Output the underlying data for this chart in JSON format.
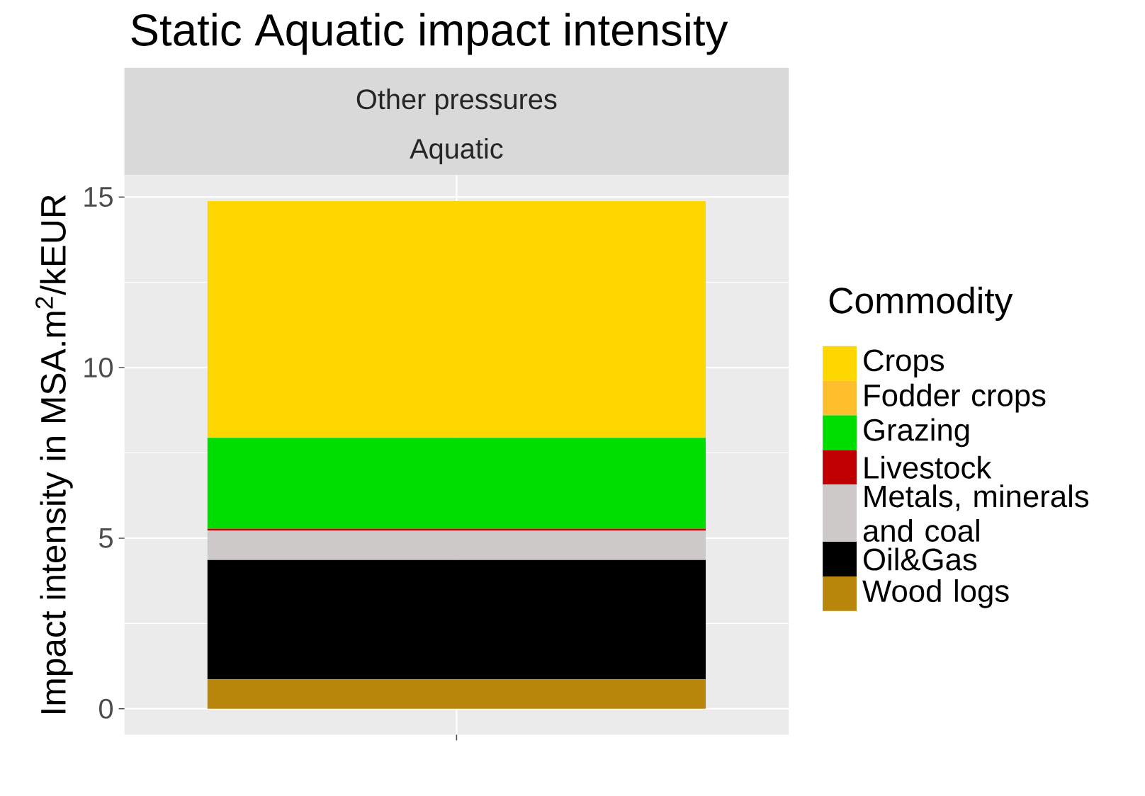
{
  "chart_data": {
    "type": "bar",
    "title": "Static Aquatic impact intensity",
    "ylabel": "Impact intensity in MSA.m$^{2}$/kEUR",
    "legend_title": "Commodity",
    "annotations": [
      "Other pressures",
      "Aquatic"
    ],
    "categories": [
      null
    ],
    "stacked": true,
    "grid": true,
    "legend": "right",
    "ylim": [
      -0.76,
      15.64
    ],
    "yticks": [
      0,
      5,
      10,
      15
    ],
    "series": [
      {
        "name": "Wood logs",
        "color": "#b8860b",
        "values": [
          0.86
        ]
      },
      {
        "name": "Oil&Gas",
        "color": "#000000",
        "values": [
          3.5
        ]
      },
      {
        "name": "Metals, minerals and coal",
        "color": "#cdc9c9",
        "values": [
          0.86
        ]
      },
      {
        "name": "Livestock",
        "color": "#c00000",
        "values": [
          0.06
        ]
      },
      {
        "name": "Grazing",
        "color": "#00dd00",
        "values": [
          2.66
        ]
      },
      {
        "name": "Fodder crops",
        "color": "#fcbf2b",
        "values": [
          0
        ]
      },
      {
        "name": "Crops",
        "color": "#ffd700",
        "values": [
          6.94
        ]
      }
    ]
  }
}
